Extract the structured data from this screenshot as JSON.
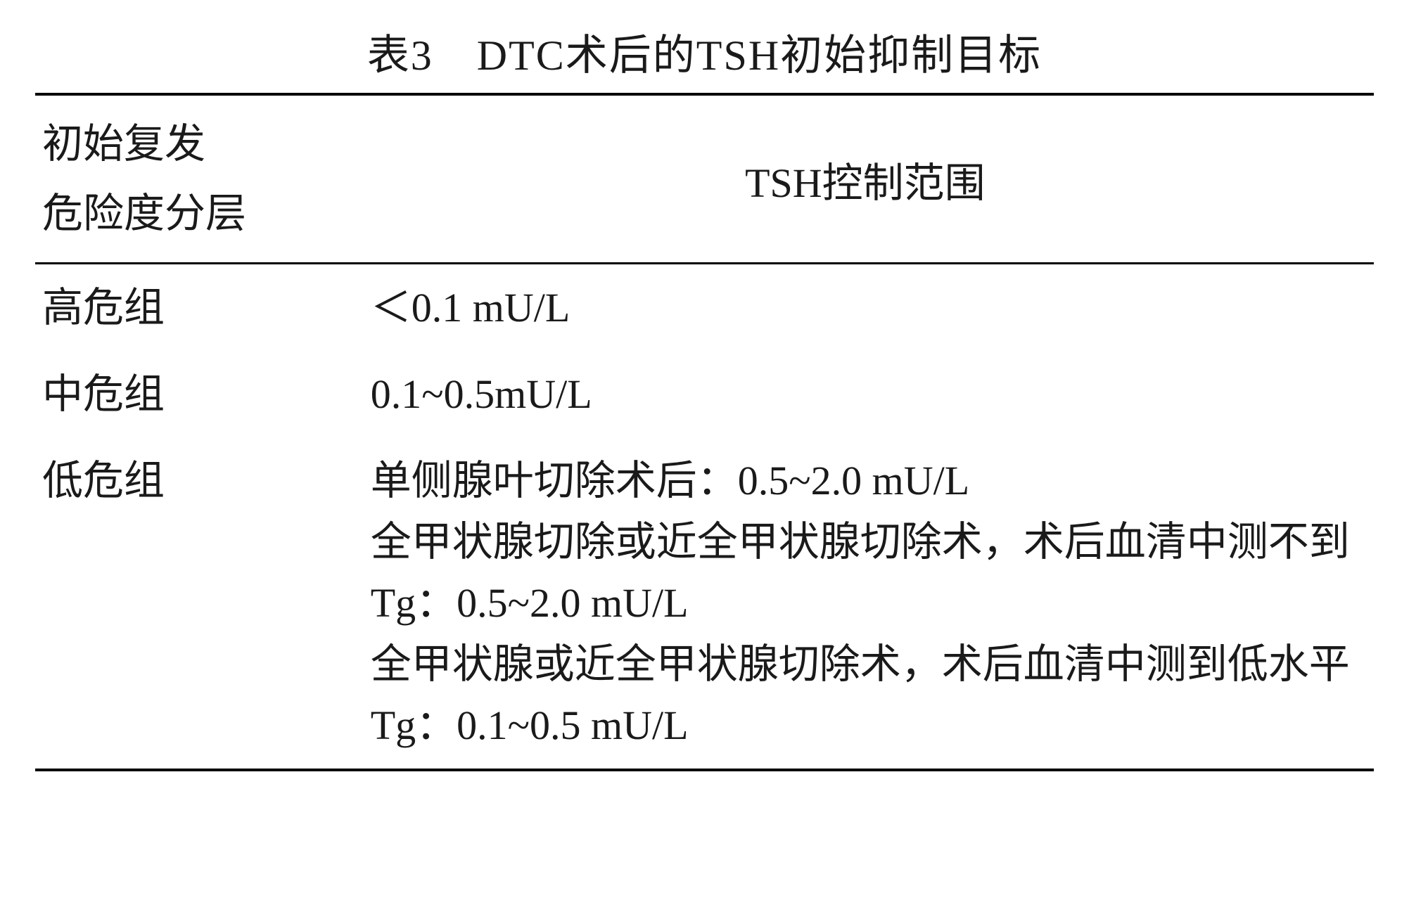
{
  "table": {
    "title": "表3　DTC术后的TSH初始抑制目标",
    "title_fontsize": 60,
    "body_fontsize": 58,
    "text_color": "#1a1a1a",
    "background_color": "#ffffff",
    "border_color": "#000000",
    "border_top_width": 4,
    "border_header_width": 3,
    "border_bottom_width": 4,
    "columns": [
      {
        "key": "risk",
        "label_line1": "初始复发",
        "label_line2": "危险度分层",
        "width_pct": 24,
        "align": "left"
      },
      {
        "key": "tsh",
        "label": "TSH控制范围",
        "width_pct": 76,
        "align": "center"
      }
    ],
    "rows": [
      {
        "risk": "高危组",
        "tsh": "＜0.1 mU/L"
      },
      {
        "risk": "中危组",
        "tsh": "0.1~0.5mU/L"
      },
      {
        "risk": "低危组",
        "tsh_lines": [
          "单侧腺叶切除术后：0.5~2.0 mU/L",
          "全甲状腺切除或近全甲状腺切除术，术后血清中测不到Tg：0.5~2.0 mU/L",
          "全甲状腺或近全甲状腺切除术，术后血清中测到低水平Tg：0.1~0.5 mU/L"
        ]
      }
    ]
  }
}
